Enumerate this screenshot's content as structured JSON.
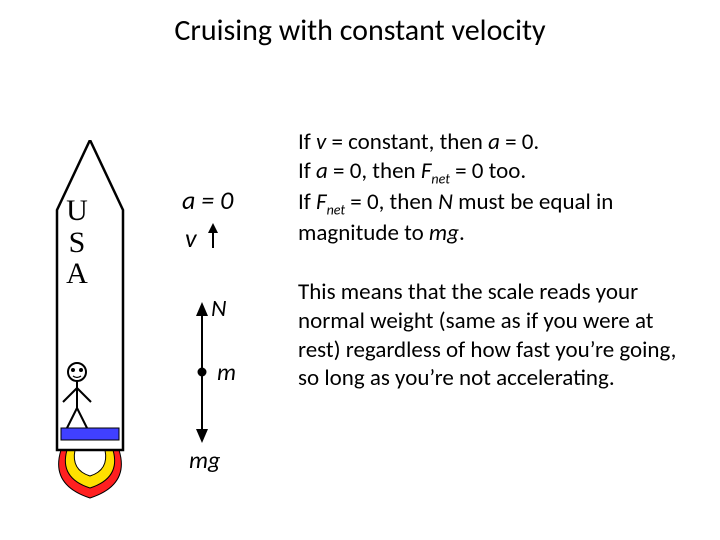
{
  "title": "Cruising with constant velocity",
  "rocket": {
    "label_lines": [
      "U",
      "S",
      "A"
    ],
    "body_stroke": "#000000",
    "body_fill": "#ffffff",
    "scale_color": "#4040ff",
    "flame_colors": [
      "#ff2020",
      "#ffe000",
      "#ffffff"
    ],
    "stroke_width": 2
  },
  "annotations": {
    "a_eq": "a = 0",
    "v_label": "v",
    "a_fontsize": 26,
    "v_fontsize": 26,
    "v_arrow_len": 22,
    "arrow_color": "#000000"
  },
  "vectors": {
    "N_label": "N",
    "m_label": "m",
    "mg_label": "mg",
    "N_len": 55,
    "mg_len": 55,
    "dot_radius": 4,
    "arrow_color": "#000000",
    "fontsize": 24
  },
  "text": {
    "p1_parts": [
      {
        "t": "If  ",
        "i": false
      },
      {
        "t": "v",
        "i": true
      },
      {
        "t": " = constant, then  ",
        "i": false
      },
      {
        "t": "a",
        "i": true
      },
      {
        "t": " = 0.",
        "i": false
      }
    ],
    "p2_parts": [
      {
        "t": "If  ",
        "i": false
      },
      {
        "t": "a",
        "i": true
      },
      {
        "t": " = 0, then  ",
        "i": false
      },
      {
        "t": "F",
        "i": true
      },
      {
        "t": "net",
        "sub": true
      },
      {
        "t": " = 0  too.",
        "i": false
      }
    ],
    "p3_parts": [
      {
        "t": "If  ",
        "i": false
      },
      {
        "t": "F",
        "i": true
      },
      {
        "t": "net",
        "sub": true
      },
      {
        "t": " = 0, then ",
        "i": false
      },
      {
        "t": "N",
        "i": true
      },
      {
        "t": " must be equal in magnitude to ",
        "i": false
      },
      {
        "t": "mg",
        "i": true
      },
      {
        "t": ".",
        "i": false
      }
    ],
    "p4": "This means that the scale reads your normal weight (same as if you were at rest) regardless of how fast you’re going, so long as you’re not accelerating.",
    "fontsize": 23,
    "color": "#000000"
  }
}
